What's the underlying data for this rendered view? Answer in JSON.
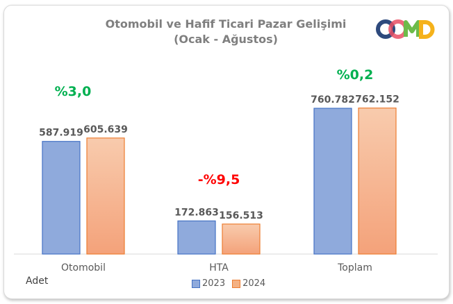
{
  "logo": {
    "text": "ODMD"
  },
  "chart_data": {
    "type": "bar",
    "title": "Otomobil ve Hafif Ticari Pazar Gelişimi",
    "subtitle": "(Ocak - Ağustos)",
    "ylabel": "Adet",
    "categories": [
      "Otomobil",
      "HTA",
      "Toplam"
    ],
    "series": [
      {
        "name": "2023",
        "values": [
          587919,
          172863,
          760782
        ],
        "labels": [
          "587.919",
          "172.863",
          "760.782"
        ],
        "color": "#8faadc"
      },
      {
        "name": "2024",
        "values": [
          605639,
          156513,
          762152
        ],
        "labels": [
          "605.639",
          "156.513",
          "762.152"
        ],
        "color": "#f4b183"
      }
    ],
    "annotations": [
      {
        "text": "%3,0",
        "category": "Otomobil",
        "color": "#00b050"
      },
      {
        "text": "-%9,5",
        "category": "HTA",
        "color": "#ff0000"
      },
      {
        "text": "%0,2",
        "category": "Toplam",
        "color": "#00b050"
      }
    ],
    "ylim": [
      0,
      1000000
    ],
    "grid": false,
    "legend": "bottom"
  }
}
